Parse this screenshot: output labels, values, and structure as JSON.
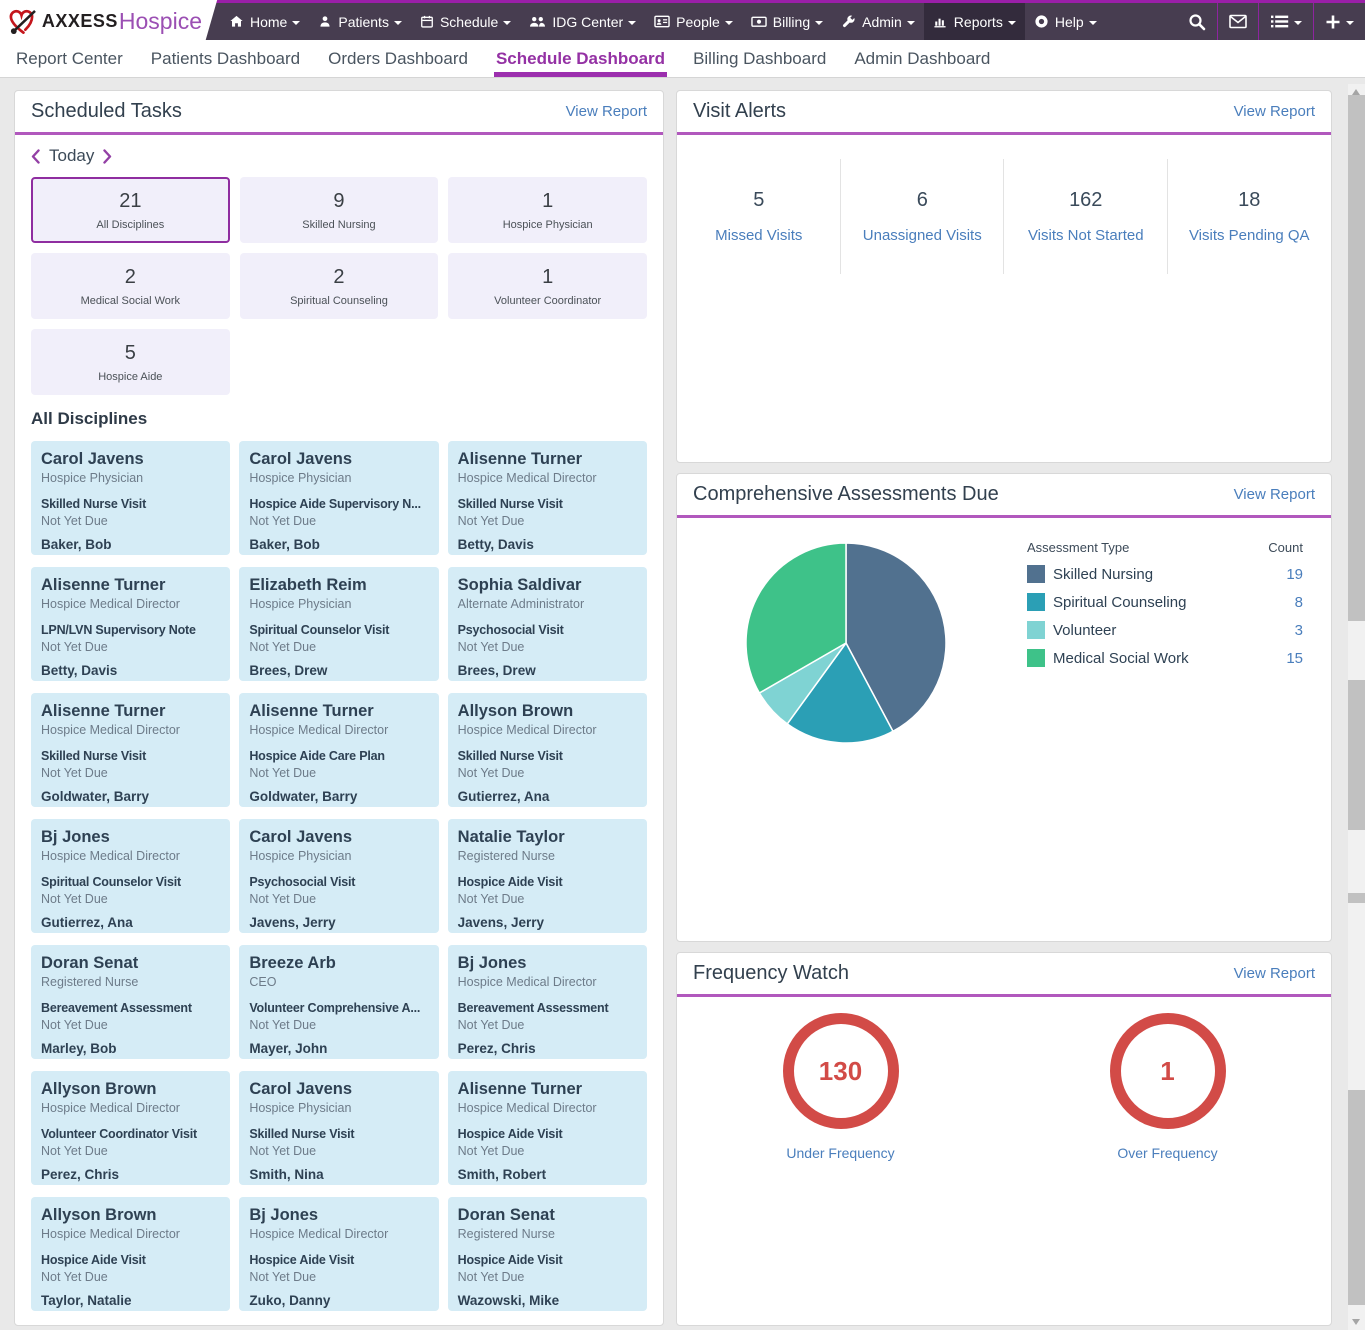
{
  "brand": {
    "name_left": "AXXESS",
    "name_right": "Hospice"
  },
  "nav": {
    "items": [
      {
        "label": "Home",
        "icon": "home-icon"
      },
      {
        "label": "Patients",
        "icon": "patient-icon"
      },
      {
        "label": "Schedule",
        "icon": "calendar-icon"
      },
      {
        "label": "IDG Center",
        "icon": "group-icon"
      },
      {
        "label": "People",
        "icon": "id-card-icon"
      },
      {
        "label": "Billing",
        "icon": "billing-icon"
      },
      {
        "label": "Admin",
        "icon": "wrench-icon"
      },
      {
        "label": "Reports",
        "icon": "bar-chart-icon",
        "active": true
      },
      {
        "label": "Help",
        "icon": "life-ring-icon"
      }
    ],
    "right_icons": [
      "search-icon",
      "envelope-icon",
      "list-menu-icon",
      "plus-icon"
    ]
  },
  "tabs": {
    "items": [
      "Report Center",
      "Patients Dashboard",
      "Orders Dashboard",
      "Schedule Dashboard",
      "Billing Dashboard",
      "Admin Dashboard"
    ],
    "active": "Schedule Dashboard"
  },
  "scheduled_tasks": {
    "title": "Scheduled Tasks",
    "view_report": "View Report",
    "date_label": "Today",
    "disciplines": [
      {
        "count": "21",
        "label": "All Disciplines",
        "selected": true
      },
      {
        "count": "9",
        "label": "Skilled Nursing"
      },
      {
        "count": "1",
        "label": "Hospice Physician"
      },
      {
        "count": "2",
        "label": "Medical Social Work"
      },
      {
        "count": "2",
        "label": "Spiritual Counseling"
      },
      {
        "count": "1",
        "label": "Volunteer Coordinator"
      },
      {
        "count": "5",
        "label": "Hospice Aide"
      }
    ],
    "section_title": "All Disciplines",
    "cards": [
      {
        "name": "Carol Javens",
        "role": "Hospice Physician",
        "task": "Skilled Nurse Visit",
        "due": "Not Yet Due",
        "patient": "Baker, Bob"
      },
      {
        "name": "Carol Javens",
        "role": "Hospice Physician",
        "task": "Hospice Aide Supervisory N...",
        "due": "Not Yet Due",
        "patient": "Baker, Bob"
      },
      {
        "name": "Alisenne Turner",
        "role": "Hospice Medical Director",
        "task": "Skilled Nurse Visit",
        "due": "Not Yet Due",
        "patient": "Betty, Davis"
      },
      {
        "name": "Alisenne Turner",
        "role": "Hospice Medical Director",
        "task": "LPN/LVN Supervisory Note",
        "due": "Not Yet Due",
        "patient": "Betty, Davis"
      },
      {
        "name": "Elizabeth Reim",
        "role": "Hospice Physician",
        "task": "Spiritual Counselor Visit",
        "due": "Not Yet Due",
        "patient": "Brees, Drew"
      },
      {
        "name": "Sophia Saldivar",
        "role": "Alternate Administrator",
        "task": "Psychosocial Visit",
        "due": "Not Yet Due",
        "patient": "Brees, Drew"
      },
      {
        "name": "Alisenne Turner",
        "role": "Hospice Medical Director",
        "task": "Skilled Nurse Visit",
        "due": "Not Yet Due",
        "patient": "Goldwater, Barry"
      },
      {
        "name": "Alisenne Turner",
        "role": "Hospice Medical Director",
        "task": "Hospice Aide Care Plan",
        "due": "Not Yet Due",
        "patient": "Goldwater, Barry"
      },
      {
        "name": "Allyson Brown",
        "role": "Hospice Medical Director",
        "task": "Skilled Nurse Visit",
        "due": "Not Yet Due",
        "patient": "Gutierrez, Ana"
      },
      {
        "name": "Bj Jones",
        "role": "Hospice Medical Director",
        "task": "Spiritual Counselor Visit",
        "due": "Not Yet Due",
        "patient": "Gutierrez, Ana"
      },
      {
        "name": "Carol Javens",
        "role": "Hospice Physician",
        "task": "Psychosocial Visit",
        "due": "Not Yet Due",
        "patient": "Javens, Jerry"
      },
      {
        "name": "Natalie Taylor",
        "role": "Registered Nurse",
        "task": "Hospice Aide Visit",
        "due": "Not Yet Due",
        "patient": "Javens, Jerry"
      },
      {
        "name": "Doran Senat",
        "role": "Registered Nurse",
        "task": "Bereavement Assessment",
        "due": "Not Yet Due",
        "patient": "Marley, Bob"
      },
      {
        "name": "Breeze Arb",
        "role": "CEO",
        "task": "Volunteer Comprehensive A...",
        "due": "Not Yet Due",
        "patient": "Mayer, John"
      },
      {
        "name": "Bj Jones",
        "role": "Hospice Medical Director",
        "task": "Bereavement Assessment",
        "due": "Not Yet Due",
        "patient": "Perez, Chris"
      },
      {
        "name": "Allyson Brown",
        "role": "Hospice Medical Director",
        "task": "Volunteer Coordinator Visit",
        "due": "Not Yet Due",
        "patient": "Perez, Chris"
      },
      {
        "name": "Carol Javens",
        "role": "Hospice Physician",
        "task": "Skilled Nurse Visit",
        "due": "Not Yet Due",
        "patient": "Smith, Nina"
      },
      {
        "name": "Alisenne Turner",
        "role": "Hospice Medical Director",
        "task": "Hospice Aide Visit",
        "due": "Not Yet Due",
        "patient": "Smith, Robert"
      },
      {
        "name": "Allyson Brown",
        "role": "Hospice Medical Director",
        "task": "Hospice Aide Visit",
        "due": "Not Yet Due",
        "patient": "Taylor, Natalie"
      },
      {
        "name": "Bj Jones",
        "role": "Hospice Medical Director",
        "task": "Hospice Aide Visit",
        "due": "Not Yet Due",
        "patient": "Zuko, Danny"
      },
      {
        "name": "Doran Senat",
        "role": "Registered Nurse",
        "task": "Hospice Aide Visit",
        "due": "Not Yet Due",
        "patient": "Wazowski, Mike"
      }
    ]
  },
  "visit_alerts": {
    "title": "Visit Alerts",
    "view_report": "View Report",
    "stats": [
      {
        "value": "5",
        "label": "Missed Visits"
      },
      {
        "value": "6",
        "label": "Unassigned Visits"
      },
      {
        "value": "162",
        "label": "Visits Not Started"
      },
      {
        "value": "18",
        "label": "Visits Pending QA"
      }
    ]
  },
  "assessments": {
    "title": "Comprehensive Assessments Due",
    "view_report": "View Report",
    "legend_header": "Assessment Type",
    "count_header": "Count"
  },
  "chart_data": [
    {
      "type": "pie",
      "title": "Comprehensive Assessments Due",
      "legend_position": "right",
      "series": [
        {
          "label": "Skilled Nursing",
          "value": 19,
          "color": "#51718f"
        },
        {
          "label": "Spiritual Counseling",
          "value": 8,
          "color": "#2b9fb5"
        },
        {
          "label": "Volunteer",
          "value": 3,
          "color": "#7fd3d3"
        },
        {
          "label": "Medical Social Work",
          "value": 15,
          "color": "#3ec289"
        }
      ]
    }
  ],
  "frequency_watch": {
    "title": "Frequency Watch",
    "view_report": "View Report",
    "stats": [
      {
        "value": "130",
        "label": "Under Frequency"
      },
      {
        "value": "1",
        "label": "Over Frequency"
      }
    ]
  }
}
